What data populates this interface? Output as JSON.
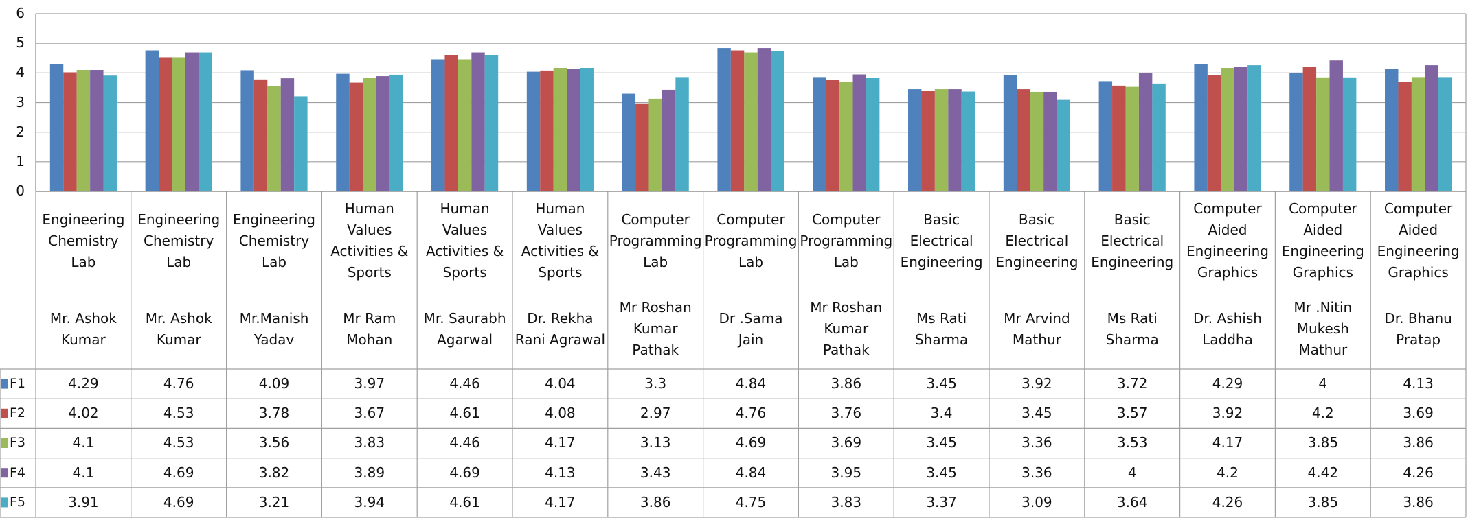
{
  "chart_data": {
    "type": "bar",
    "categories": [
      [
        "Engineering Chemistry Lab",
        "Mr. Ashok Kumar"
      ],
      [
        "Engineering Chemistry Lab",
        "Mr. Ashok Kumar"
      ],
      [
        "Engineering Chemistry Lab",
        "Mr.Manish Yadav"
      ],
      [
        "Human Values Activities & Sports",
        "Mr Ram Mohan"
      ],
      [
        "Human Values Activities & Sports",
        "Mr. Saurabh Agarwal"
      ],
      [
        "Human Values Activities & Sports",
        "Dr. Rekha Rani Agrawal"
      ],
      [
        "Computer Programming Lab",
        "Mr Roshan Kumar Pathak"
      ],
      [
        "Computer Programming Lab",
        "Dr .Sama Jain"
      ],
      [
        "Computer Programming Lab",
        "Mr Roshan Kumar Pathak"
      ],
      [
        "Basic Electrical Engineering",
        "Ms Rati Sharma"
      ],
      [
        "Basic Electrical Engineering",
        "Mr Arvind Mathur"
      ],
      [
        "Basic Electrical Engineering",
        "Ms Rati Sharma"
      ],
      [
        "Computer Aided Engineering Graphics",
        "Dr. Ashish Laddha"
      ],
      [
        "Computer Aided Engineering Graphics",
        "Mr .Nitin Mukesh Mathur"
      ],
      [
        "Computer Aided Engineering Graphics",
        "Dr. Bhanu Pratap"
      ]
    ],
    "series": [
      {
        "name": "F1",
        "color": "#4f81bd",
        "values": [
          4.29,
          4.76,
          4.09,
          3.97,
          4.46,
          4.04,
          3.3,
          4.84,
          3.86,
          3.45,
          3.92,
          3.72,
          4.29,
          4,
          4.13
        ]
      },
      {
        "name": "F2",
        "color": "#c0504d",
        "values": [
          4.02,
          4.53,
          3.78,
          3.67,
          4.61,
          4.08,
          2.97,
          4.76,
          3.76,
          3.4,
          3.45,
          3.57,
          3.92,
          4.2,
          3.69
        ]
      },
      {
        "name": "F3",
        "color": "#9bbb59",
        "values": [
          4.1,
          4.53,
          3.56,
          3.83,
          4.46,
          4.17,
          3.13,
          4.69,
          3.69,
          3.45,
          3.36,
          3.53,
          4.17,
          3.85,
          3.86
        ]
      },
      {
        "name": "F4",
        "color": "#8064a2",
        "values": [
          4.1,
          4.69,
          3.82,
          3.89,
          4.69,
          4.13,
          3.43,
          4.84,
          3.95,
          3.45,
          3.36,
          4,
          4.2,
          4.42,
          4.26
        ]
      },
      {
        "name": "F5",
        "color": "#4bacc6",
        "values": [
          3.91,
          4.69,
          3.21,
          3.94,
          4.61,
          4.17,
          3.86,
          4.75,
          3.83,
          3.37,
          3.09,
          3.64,
          4.26,
          3.85,
          3.86
        ]
      }
    ],
    "ylim": [
      0,
      6
    ],
    "yticks": [
      0,
      1,
      2,
      3,
      4,
      5,
      6
    ],
    "grid": true
  }
}
